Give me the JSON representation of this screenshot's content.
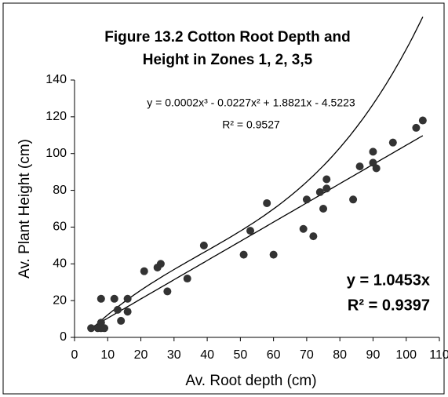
{
  "chart_data": {
    "type": "scatter",
    "title": [
      "Figure 13.2  Cotton Root Depth and",
      "Height in Zones 1, 2, 3,5"
    ],
    "x_label": "Av. Root depth (cm)",
    "y_label": "Av. Plant Height (cm)",
    "xlim": [
      0,
      110
    ],
    "xticks": [
      0,
      10,
      20,
      30,
      40,
      50,
      60,
      70,
      80,
      90,
      100,
      110
    ],
    "ylim": [
      0,
      140
    ],
    "yticks": [
      0,
      20,
      40,
      60,
      80,
      100,
      120,
      140
    ],
    "color": "#333333",
    "x": [
      5,
      7,
      8,
      8,
      9,
      8,
      12,
      13,
      14,
      16,
      16,
      21,
      25,
      26,
      28,
      34,
      39,
      51,
      53,
      58,
      60,
      69,
      70,
      72,
      74,
      75,
      76,
      76,
      84,
      86,
      90,
      90,
      91,
      96,
      103,
      105
    ],
    "values": [
      5,
      5,
      8,
      5,
      5,
      21,
      21,
      15,
      9,
      14,
      21,
      36,
      38,
      40,
      25,
      32,
      50,
      45,
      58,
      73,
      45,
      59,
      75,
      55,
      79,
      70,
      81,
      86,
      75,
      93,
      95,
      101,
      92,
      106,
      114,
      118
    ],
    "trendlines": [
      {
        "equation": "y = 0.0002x³ - 0.0227x² + 1.8821x - 4.5223",
        "r2": "R² = 0.9527",
        "coefficients": [
          0.0002,
          -0.0227,
          1.8821,
          -4.5223
        ]
      },
      {
        "equation": "y = 1.0453x",
        "r2": "R² = 0.9397",
        "coefficients": [
          1.0453,
          0
        ]
      }
    ]
  }
}
